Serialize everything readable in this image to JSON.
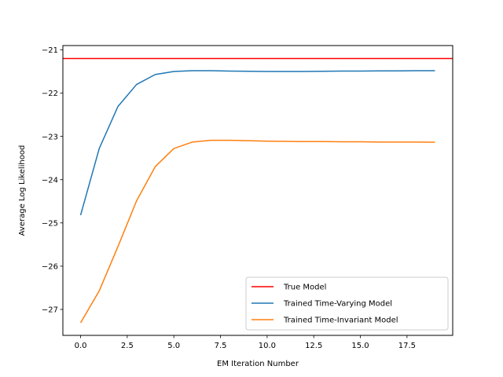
{
  "chart_data": {
    "type": "line",
    "title": "",
    "xlabel": "EM Iteration Number",
    "ylabel": "Average Log Likelihood",
    "xlim": [
      -0.95,
      19.95
    ],
    "ylim": [
      -27.6,
      -20.9
    ],
    "x_ticks": [
      0.0,
      2.5,
      5.0,
      7.5,
      10.0,
      12.5,
      15.0,
      17.5
    ],
    "x_tick_labels": [
      "0.0",
      "2.5",
      "5.0",
      "7.5",
      "10.0",
      "12.5",
      "15.0",
      "17.5"
    ],
    "y_ticks": [
      -27,
      -26,
      -25,
      -24,
      -23,
      -22,
      -21
    ],
    "y_tick_labels": [
      "−27",
      "−26",
      "−25",
      "−24",
      "−23",
      "−22",
      "−21"
    ],
    "grid": false,
    "legend_position": "lower right",
    "hline": {
      "name": "True Model",
      "y": -21.2,
      "color": "#ff0000"
    },
    "x": [
      0,
      1,
      2,
      3,
      4,
      5,
      6,
      7,
      8,
      9,
      10,
      11,
      12,
      13,
      14,
      15,
      16,
      17,
      18,
      19
    ],
    "series": [
      {
        "name": "Trained Time-Varying Model",
        "color": "#1f77b4",
        "values": [
          -24.82,
          -23.28,
          -22.31,
          -21.8,
          -21.57,
          -21.5,
          -21.48,
          -21.48,
          -21.49,
          -21.495,
          -21.5,
          -21.5,
          -21.5,
          -21.495,
          -21.49,
          -21.49,
          -21.485,
          -21.485,
          -21.48,
          -21.48
        ]
      },
      {
        "name": "Trained Time-Invariant Model",
        "color": "#ff7f0e",
        "values": [
          -27.31,
          -26.57,
          -25.55,
          -24.49,
          -23.7,
          -23.28,
          -23.13,
          -23.09,
          -23.09,
          -23.1,
          -23.11,
          -23.115,
          -23.12,
          -23.12,
          -23.125,
          -23.125,
          -23.13,
          -23.13,
          -23.13,
          -23.135
        ]
      }
    ]
  }
}
